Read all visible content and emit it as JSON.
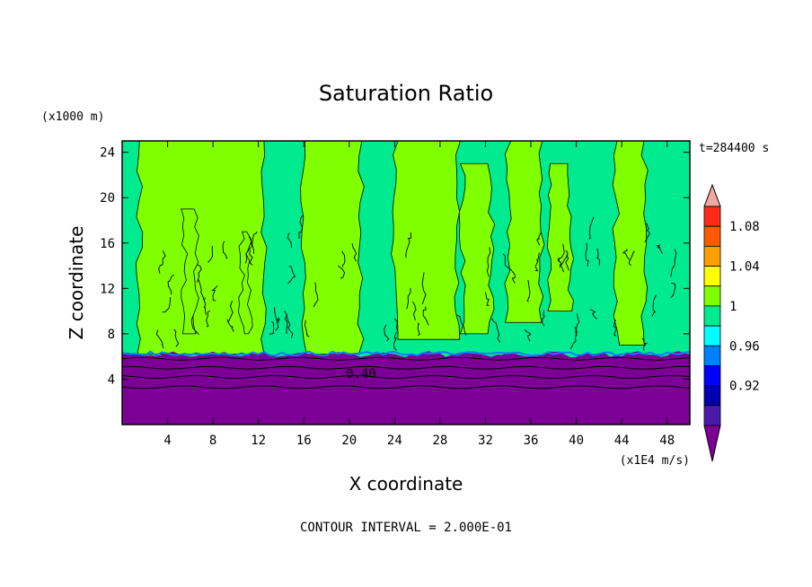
{
  "chart_data": {
    "type": "heatmap",
    "title": "Saturation Ratio",
    "xlabel": "X coordinate",
    "ylabel": "Z coordinate",
    "x_unit": "(x1E4 m/s)",
    "y_unit": "(x1000 m)",
    "time_label": "t=284400 s",
    "footer": "CONTOUR INTERVAL = 2.000E-01",
    "contour_label": "0.40",
    "xlim": [
      0,
      50
    ],
    "ylim": [
      0,
      25
    ],
    "x_ticks": [
      "4",
      "8",
      "12",
      "16",
      "20",
      "24",
      "28",
      "32",
      "36",
      "40",
      "44",
      "48"
    ],
    "y_ticks": [
      "4",
      "8",
      "12",
      "16",
      "20",
      "24"
    ],
    "x_tick_values": [
      4,
      8,
      12,
      16,
      20,
      24,
      28,
      32,
      36,
      40,
      44,
      48
    ],
    "y_tick_values": [
      4,
      8,
      12,
      16,
      20,
      24
    ],
    "boundary_layer_top": 6.2,
    "contour_levels_below": [
      5.8,
      5.0,
      4.2,
      3.3
    ],
    "colorbar": {
      "levels": [
        "0.92",
        "0.96",
        "1",
        "1.04",
        "1.08"
      ],
      "level_values": [
        0.92,
        0.96,
        1.0,
        1.04,
        1.08
      ],
      "bins": [
        {
          "lo": 1.1,
          "color": "#f4a6a0"
        },
        {
          "lo": 1.08,
          "color": "#ff2a1a"
        },
        {
          "lo": 1.06,
          "color": "#ff5a00"
        },
        {
          "lo": 1.04,
          "color": "#ffa000"
        },
        {
          "lo": 1.02,
          "color": "#ffff00"
        },
        {
          "lo": 1.0,
          "color": "#80ff00"
        },
        {
          "lo": 0.98,
          "color": "#00eb90"
        },
        {
          "lo": 0.96,
          "color": "#00ffff"
        },
        {
          "lo": 0.94,
          "color": "#0080ff"
        },
        {
          "lo": 0.92,
          "color": "#0000ff"
        },
        {
          "lo": 0.9,
          "color": "#0000b0"
        },
        {
          "lo": 0.88,
          "color": "#4b1aa8"
        },
        {
          "lo": 0.0,
          "color": "#7d0096"
        }
      ]
    },
    "regions": [
      {
        "name": "moist-green-bg",
        "value": 0.99,
        "color": "#00eb90"
      },
      {
        "name": "supersaturated-columns",
        "value": 1.01,
        "color": "#80ff00"
      },
      {
        "name": "dry-boundary-layer",
        "value": 0.4,
        "color": "#7d0096"
      }
    ],
    "columns": [
      {
        "x0": 1.5,
        "x1": 12.5,
        "z0": 6.2,
        "z1": 25.0
      },
      {
        "x0": 16.0,
        "x1": 21.0,
        "z0": 6.2,
        "z1": 25.0
      },
      {
        "x0": 24.0,
        "x1": 29.5,
        "z0": 7.5,
        "z1": 25.0
      },
      {
        "x0": 30.0,
        "x1": 32.5,
        "z0": 8.0,
        "z1": 23.0
      },
      {
        "x0": 34.0,
        "x1": 37.0,
        "z0": 9.0,
        "z1": 25.0
      },
      {
        "x0": 37.5,
        "x1": 39.5,
        "z0": 10.0,
        "z1": 23.0
      },
      {
        "x0": 43.5,
        "x1": 46.0,
        "z0": 7.0,
        "z1": 25.0
      },
      {
        "x0": 5.5,
        "x1": 6.5,
        "z0": 8.0,
        "z1": 19.0
      },
      {
        "x0": 10.5,
        "x1": 11.2,
        "z0": 8.0,
        "z1": 17.0
      }
    ]
  }
}
